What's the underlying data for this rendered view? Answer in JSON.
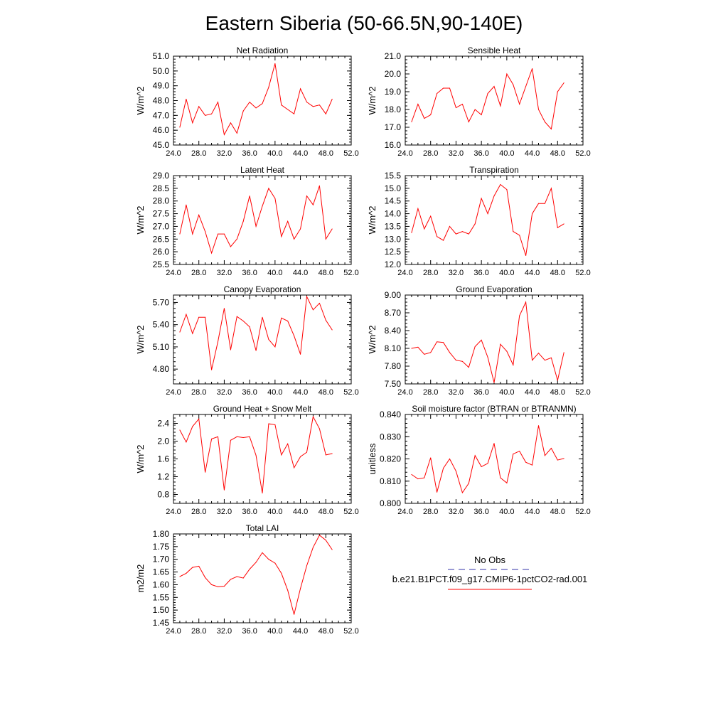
{
  "figure": {
    "title": "Eastern Siberia (50-66.5N,90-140E)",
    "line_color": "#ff0000",
    "obs_line_color": "#3333aa"
  },
  "legend": {
    "obs_label": "No Obs",
    "model_label": "b.e21.B1PCT.f09_g17.CMIP6-1pctCO2-rad.001"
  },
  "chart_data": [
    {
      "type": "line",
      "title": "Net Radiation",
      "ylabel": "W/m^2",
      "xlim": [
        24,
        52
      ],
      "ylim": [
        45,
        51
      ],
      "x_ticks": [
        "24.0",
        "28.0",
        "32.0",
        "36.0",
        "40.0",
        "44.0",
        "48.0",
        "52.0"
      ],
      "y_ticks": [
        "45.0",
        "46.0",
        "47.0",
        "48.0",
        "49.0",
        "50.0",
        "51.0"
      ],
      "y_tick_values": [
        45,
        46,
        47,
        48,
        49,
        50,
        51
      ],
      "x": [
        25,
        26,
        27,
        28,
        29,
        30,
        31,
        32,
        33,
        34,
        35,
        36,
        37,
        38,
        39,
        40,
        41,
        42,
        43,
        44,
        45,
        46,
        47,
        48,
        49
      ],
      "values": [
        46.2,
        48.1,
        46.5,
        47.6,
        47.0,
        47.1,
        47.9,
        45.7,
        46.5,
        45.8,
        47.3,
        47.9,
        47.5,
        47.8,
        48.9,
        50.5,
        47.7,
        47.4,
        47.1,
        48.8,
        47.9,
        47.6,
        47.7,
        47.1,
        48.1
      ]
    },
    {
      "type": "line",
      "title": "Sensible Heat",
      "ylabel": "W/m^2",
      "xlim": [
        24,
        52
      ],
      "ylim": [
        16,
        21
      ],
      "x_ticks": [
        "24.0",
        "28.0",
        "32.0",
        "36.0",
        "40.0",
        "44.0",
        "48.0",
        "52.0"
      ],
      "y_ticks": [
        "16.0",
        "17.0",
        "18.0",
        "19.0",
        "20.0",
        "21.0"
      ],
      "y_tick_values": [
        16,
        17,
        18,
        19,
        20,
        21
      ],
      "x": [
        25,
        26,
        27,
        28,
        29,
        30,
        31,
        32,
        33,
        34,
        35,
        36,
        37,
        38,
        39,
        40,
        41,
        42,
        43,
        44,
        45,
        46,
        47,
        48,
        49
      ],
      "values": [
        17.3,
        18.3,
        17.5,
        17.7,
        18.9,
        19.2,
        19.2,
        18.1,
        18.3,
        17.3,
        18.0,
        17.7,
        18.9,
        19.3,
        18.2,
        20.0,
        19.4,
        18.3,
        19.3,
        20.3,
        18.0,
        17.3,
        16.9,
        19.0,
        19.5
      ]
    },
    {
      "type": "line",
      "title": "Latent Heat",
      "ylabel": "W/m^2",
      "xlim": [
        24,
        52
      ],
      "ylim": [
        25.5,
        29
      ],
      "x_ticks": [
        "24.0",
        "28.0",
        "32.0",
        "36.0",
        "40.0",
        "44.0",
        "48.0",
        "52.0"
      ],
      "y_ticks": [
        "25.5",
        "26.0",
        "26.5",
        "27.0",
        "27.5",
        "28.0",
        "28.5",
        "29.0"
      ],
      "y_tick_values": [
        25.5,
        26,
        26.5,
        27,
        27.5,
        28,
        28.5,
        29
      ],
      "x": [
        25,
        26,
        27,
        28,
        29,
        30,
        31,
        32,
        33,
        34,
        35,
        36,
        37,
        38,
        39,
        40,
        41,
        42,
        43,
        44,
        45,
        46,
        47,
        48,
        49
      ],
      "values": [
        26.7,
        27.85,
        26.7,
        27.45,
        26.8,
        25.95,
        26.7,
        26.7,
        26.2,
        26.5,
        27.2,
        28.2,
        27.0,
        27.8,
        28.5,
        28.1,
        26.6,
        27.2,
        26.5,
        26.9,
        28.2,
        27.85,
        28.6,
        26.5,
        26.9
      ]
    },
    {
      "type": "line",
      "title": "Transpiration",
      "ylabel": "W/m^2",
      "xlim": [
        24,
        52
      ],
      "ylim": [
        12,
        15.5
      ],
      "x_ticks": [
        "24.0",
        "28.0",
        "32.0",
        "36.0",
        "40.0",
        "44.0",
        "48.0",
        "52.0"
      ],
      "y_ticks": [
        "12.0",
        "12.5",
        "13.0",
        "13.5",
        "14.0",
        "14.5",
        "15.0",
        "15.5"
      ],
      "y_tick_values": [
        12,
        12.5,
        13,
        13.5,
        14,
        14.5,
        15,
        15.5
      ],
      "x": [
        25,
        26,
        27,
        28,
        29,
        30,
        31,
        32,
        33,
        34,
        35,
        36,
        37,
        38,
        39,
        40,
        41,
        42,
        43,
        44,
        45,
        46,
        47,
        48,
        49
      ],
      "values": [
        13.25,
        14.2,
        13.4,
        13.9,
        13.1,
        12.95,
        13.5,
        13.2,
        13.3,
        13.2,
        13.6,
        14.6,
        14.0,
        14.7,
        15.15,
        14.95,
        13.3,
        13.15,
        12.35,
        14.0,
        14.4,
        14.4,
        15.0,
        13.45,
        13.6
      ]
    },
    {
      "type": "line",
      "title": "Canopy Evaporation",
      "ylabel": "W/m^2",
      "xlim": [
        24,
        52
      ],
      "ylim": [
        4.6,
        5.8
      ],
      "x_ticks": [
        "24.0",
        "28.0",
        "32.0",
        "36.0",
        "40.0",
        "44.0",
        "48.0",
        "52.0"
      ],
      "y_ticks": [
        "4.80",
        "5.10",
        "5.40",
        "5.70"
      ],
      "y_tick_values": [
        4.8,
        5.1,
        5.4,
        5.7
      ],
      "x": [
        25,
        26,
        27,
        28,
        29,
        30,
        31,
        32,
        33,
        34,
        35,
        36,
        37,
        38,
        39,
        40,
        41,
        42,
        43,
        44,
        45,
        46,
        47,
        48,
        49
      ],
      "values": [
        5.3,
        5.54,
        5.28,
        5.5,
        5.5,
        4.79,
        5.17,
        5.62,
        5.06,
        5.51,
        5.45,
        5.37,
        5.05,
        5.5,
        5.2,
        5.1,
        5.49,
        5.45,
        5.25,
        5.0,
        5.78,
        5.6,
        5.69,
        5.46,
        5.33
      ]
    },
    {
      "type": "line",
      "title": "Ground Evaporation",
      "ylabel": "W/m^2",
      "xlim": [
        24,
        52
      ],
      "ylim": [
        7.5,
        9.0
      ],
      "x_ticks": [
        "24.0",
        "28.0",
        "32.0",
        "36.0",
        "40.0",
        "44.0",
        "48.0",
        "52.0"
      ],
      "y_ticks": [
        "7.50",
        "7.80",
        "8.10",
        "8.40",
        "8.70",
        "9.00"
      ],
      "y_tick_values": [
        7.5,
        7.8,
        8.1,
        8.4,
        8.7,
        9.0
      ],
      "x": [
        25,
        26,
        27,
        28,
        29,
        30,
        31,
        32,
        33,
        34,
        35,
        36,
        37,
        38,
        39,
        40,
        41,
        42,
        43,
        44,
        45,
        46,
        47,
        48,
        49
      ],
      "values": [
        8.1,
        8.12,
        8.0,
        8.03,
        8.21,
        8.2,
        8.03,
        7.9,
        7.88,
        7.78,
        8.13,
        8.24,
        7.95,
        7.52,
        8.17,
        8.05,
        7.82,
        8.65,
        8.88,
        7.9,
        8.02,
        7.9,
        7.94,
        7.56,
        8.03
      ]
    },
    {
      "type": "line",
      "title": "Ground Heat + Snow Melt",
      "ylabel": "W/m^2",
      "xlim": [
        24,
        52
      ],
      "ylim": [
        0.6,
        2.6
      ],
      "x_ticks": [
        "24.0",
        "28.0",
        "32.0",
        "36.0",
        "40.0",
        "44.0",
        "48.0",
        "52.0"
      ],
      "y_ticks": [
        "0.8",
        "1.2",
        "1.6",
        "2.0",
        "2.4"
      ],
      "y_tick_values": [
        0.8,
        1.2,
        1.6,
        2.0,
        2.4
      ],
      "x": [
        25,
        26,
        27,
        28,
        29,
        30,
        31,
        32,
        33,
        34,
        35,
        36,
        37,
        38,
        39,
        40,
        41,
        42,
        43,
        44,
        45,
        46,
        47,
        48,
        49
      ],
      "values": [
        2.25,
        1.98,
        2.33,
        2.5,
        1.3,
        2.05,
        2.1,
        0.9,
        2.02,
        2.1,
        2.08,
        2.1,
        1.68,
        0.83,
        2.39,
        2.37,
        1.69,
        1.94,
        1.4,
        1.65,
        1.75,
        2.55,
        2.28,
        1.69,
        1.72
      ]
    },
    {
      "type": "line",
      "title": "Soil moisture factor (BTRAN or BTRANMN)",
      "ylabel": "unitless",
      "xlim": [
        24,
        52
      ],
      "ylim": [
        0.8,
        0.84
      ],
      "x_ticks": [
        "24.0",
        "28.0",
        "32.0",
        "36.0",
        "40.0",
        "44.0",
        "48.0",
        "52.0"
      ],
      "y_ticks": [
        "0.800",
        "0.810",
        "0.820",
        "0.830",
        "0.840"
      ],
      "y_tick_values": [
        0.8,
        0.81,
        0.82,
        0.83,
        0.84
      ],
      "x": [
        25,
        26,
        27,
        28,
        29,
        30,
        31,
        32,
        33,
        34,
        35,
        36,
        37,
        38,
        39,
        40,
        41,
        42,
        43,
        44,
        45,
        46,
        47,
        48,
        49
      ],
      "values": [
        0.813,
        0.811,
        0.8115,
        0.8205,
        0.805,
        0.8158,
        0.82,
        0.8145,
        0.8048,
        0.809,
        0.8215,
        0.8165,
        0.818,
        0.827,
        0.8115,
        0.8092,
        0.8222,
        0.8235,
        0.8185,
        0.8172,
        0.835,
        0.8215,
        0.8248,
        0.8195,
        0.8202
      ]
    },
    {
      "type": "line",
      "title": "Total LAI",
      "ylabel": "m2/m2",
      "xlim": [
        24,
        52
      ],
      "ylim": [
        1.45,
        1.8
      ],
      "x_ticks": [
        "24.0",
        "28.0",
        "32.0",
        "36.0",
        "40.0",
        "44.0",
        "48.0",
        "52.0"
      ],
      "y_ticks": [
        "1.45",
        "1.50",
        "1.55",
        "1.60",
        "1.65",
        "1.70",
        "1.75",
        "1.80"
      ],
      "y_tick_values": [
        1.45,
        1.5,
        1.55,
        1.6,
        1.65,
        1.7,
        1.75,
        1.8
      ],
      "x": [
        25,
        26,
        27,
        28,
        29,
        30,
        31,
        32,
        33,
        34,
        35,
        36,
        37,
        38,
        39,
        40,
        41,
        42,
        43,
        44,
        45,
        46,
        47,
        48,
        49
      ],
      "values": [
        1.632,
        1.645,
        1.668,
        1.673,
        1.628,
        1.6,
        1.592,
        1.594,
        1.621,
        1.632,
        1.626,
        1.661,
        1.688,
        1.726,
        1.7,
        1.685,
        1.645,
        1.578,
        1.483,
        1.585,
        1.675,
        1.747,
        1.795,
        1.775,
        1.738
      ]
    }
  ]
}
